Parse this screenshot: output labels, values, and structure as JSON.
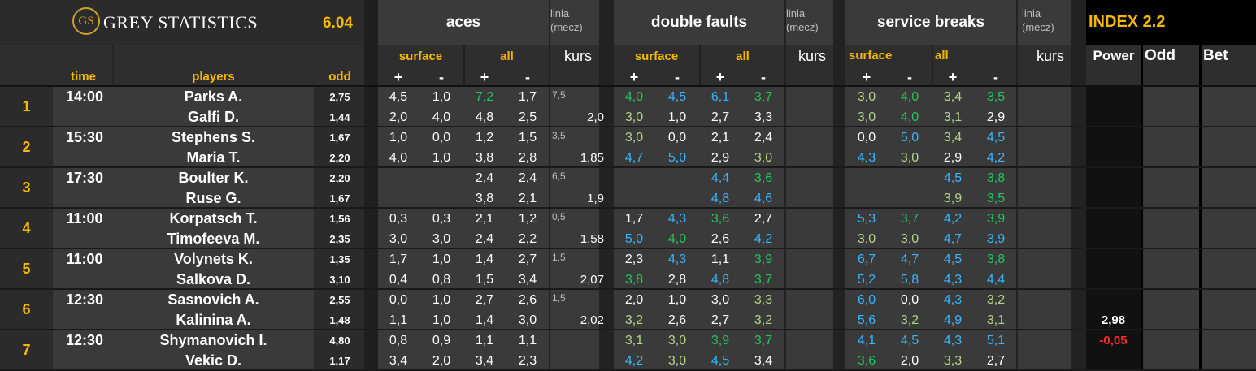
{
  "colors": {
    "white": "#ffffff",
    "green": "#22c55e",
    "blue": "#38b6ff",
    "lime": "#b5d48a",
    "gray": "#bdbdbd",
    "gold": "#f5b800",
    "red": "#ff2a2a"
  },
  "header": {
    "brand": "GREY STATISTICS",
    "logo": "GS",
    "version": "6.04",
    "aces": "aces",
    "double_faults": "double faults",
    "service_breaks": "service breaks",
    "linia": "linia",
    "mecz": "(mecz)",
    "index": "INDEX 2.2",
    "surface": "surface",
    "all": "all",
    "kurs": "kurs",
    "power": "Power",
    "odd_col": "Odd",
    "bet": "Bet",
    "time": "time",
    "players": "players",
    "odd": "odd",
    "plus": "+",
    "minus": "-"
  },
  "matches": [
    {
      "no": "1",
      "time": "14:00",
      "players": [
        "Parks A.",
        "Galfi D."
      ],
      "odds": [
        "2,75",
        "1,44"
      ],
      "aces": [
        [
          "4,5",
          "1,0",
          "7,2",
          "1,7"
        ],
        [
          "2,0",
          "4,0",
          "4,8",
          "2,5"
        ]
      ],
      "aces_c": [
        [
          "w",
          "w",
          "g",
          "w"
        ],
        [
          "w",
          "w",
          "w",
          "w"
        ]
      ],
      "ace_line": "7,5",
      "ace_kurs": "2,0",
      "df": [
        [
          "4,0",
          "4,5",
          "6,1",
          "3,7"
        ],
        [
          "3,0",
          "1,0",
          "2,7",
          "3,3"
        ]
      ],
      "df_c": [
        [
          "g",
          "b",
          "b",
          "g"
        ],
        [
          "l",
          "w",
          "w",
          "w"
        ]
      ],
      "sb": [
        [
          "3,0",
          "4,0",
          "3,4",
          "3,5"
        ],
        [
          "3,0",
          "4,0",
          "3,1",
          "2,9"
        ]
      ],
      "sb_c": [
        [
          "l",
          "g",
          "l",
          "g"
        ],
        [
          "l",
          "g",
          "l",
          "w"
        ]
      ],
      "power": [
        "",
        ""
      ]
    },
    {
      "no": "2",
      "time": "15:30",
      "players": [
        "Stephens S.",
        "Maria T."
      ],
      "odds": [
        "1,67",
        "2,20"
      ],
      "aces": [
        [
          "1,0",
          "0,0",
          "1,2",
          "1,5"
        ],
        [
          "4,0",
          "1,0",
          "3,8",
          "2,8"
        ]
      ],
      "aces_c": [
        [
          "w",
          "w",
          "w",
          "w"
        ],
        [
          "w",
          "w",
          "w",
          "w"
        ]
      ],
      "ace_line": "3,5",
      "ace_kurs": "1,85",
      "df": [
        [
          "3,0",
          "0,0",
          "2,1",
          "2,4"
        ],
        [
          "4,7",
          "5,0",
          "2,9",
          "3,0"
        ]
      ],
      "df_c": [
        [
          "l",
          "w",
          "w",
          "w"
        ],
        [
          "b",
          "b",
          "w",
          "l"
        ]
      ],
      "sb": [
        [
          "0,0",
          "5,0",
          "3,4",
          "4,5"
        ],
        [
          "4,3",
          "3,0",
          "2,9",
          "4,2"
        ]
      ],
      "sb_c": [
        [
          "w",
          "b",
          "l",
          "b"
        ],
        [
          "b",
          "l",
          "w",
          "b"
        ]
      ],
      "power": [
        "",
        ""
      ]
    },
    {
      "no": "3",
      "time": "17:30",
      "players": [
        "Boulter K.",
        "Ruse G."
      ],
      "odds": [
        "2,20",
        "1,67"
      ],
      "aces": [
        [
          "",
          "",
          "2,4",
          "2,4"
        ],
        [
          "",
          "",
          "3,8",
          "2,1"
        ]
      ],
      "aces_c": [
        [
          "w",
          "w",
          "w",
          "w"
        ],
        [
          "w",
          "w",
          "w",
          "w"
        ]
      ],
      "ace_line": "6,5",
      "ace_kurs": "1,9",
      "df": [
        [
          "",
          "",
          "4,4",
          "3,6"
        ],
        [
          "",
          "",
          "4,8",
          "4,6"
        ]
      ],
      "df_c": [
        [
          "w",
          "w",
          "b",
          "g"
        ],
        [
          "w",
          "w",
          "b",
          "b"
        ]
      ],
      "sb": [
        [
          "",
          "",
          "4,5",
          "3,8"
        ],
        [
          "",
          "",
          "3,9",
          "3,5"
        ]
      ],
      "sb_c": [
        [
          "w",
          "w",
          "b",
          "g"
        ],
        [
          "w",
          "w",
          "l",
          "g"
        ]
      ],
      "power": [
        "",
        ""
      ]
    },
    {
      "no": "4",
      "time": "11:00",
      "players": [
        "Korpatsch T.",
        "Timofeeva M."
      ],
      "odds": [
        "1,56",
        "2,35"
      ],
      "aces": [
        [
          "0,3",
          "0,3",
          "2,1",
          "1,2"
        ],
        [
          "3,0",
          "3,0",
          "2,4",
          "2,2"
        ]
      ],
      "aces_c": [
        [
          "w",
          "w",
          "w",
          "w"
        ],
        [
          "w",
          "w",
          "w",
          "w"
        ]
      ],
      "ace_line": "0,5",
      "ace_kurs": "1,58",
      "df": [
        [
          "1,7",
          "4,3",
          "3,6",
          "2,7"
        ],
        [
          "5,0",
          "4,0",
          "2,6",
          "4,2"
        ]
      ],
      "df_c": [
        [
          "w",
          "b",
          "g",
          "w"
        ],
        [
          "b",
          "g",
          "w",
          "b"
        ]
      ],
      "sb": [
        [
          "5,3",
          "3,7",
          "4,2",
          "3,9"
        ],
        [
          "3,0",
          "3,0",
          "4,7",
          "3,9"
        ]
      ],
      "sb_c": [
        [
          "b",
          "g",
          "b",
          "g"
        ],
        [
          "l",
          "l",
          "b",
          "b"
        ]
      ],
      "power": [
        "",
        ""
      ]
    },
    {
      "no": "5",
      "time": "11:00",
      "players": [
        "Volynets K.",
        "Salkova D."
      ],
      "odds": [
        "1,35",
        "3,10"
      ],
      "aces": [
        [
          "1,7",
          "1,0",
          "1,4",
          "2,7"
        ],
        [
          "0,4",
          "0,8",
          "1,5",
          "3,4"
        ]
      ],
      "aces_c": [
        [
          "w",
          "w",
          "w",
          "w"
        ],
        [
          "w",
          "w",
          "w",
          "w"
        ]
      ],
      "ace_line": "1,5",
      "ace_kurs": "2,07",
      "df": [
        [
          "2,3",
          "4,3",
          "1,1",
          "3,9"
        ],
        [
          "3,8",
          "2,8",
          "4,8",
          "3,7"
        ]
      ],
      "df_c": [
        [
          "w",
          "b",
          "w",
          "g"
        ],
        [
          "g",
          "w",
          "b",
          "g"
        ]
      ],
      "sb": [
        [
          "6,7",
          "4,7",
          "4,5",
          "3,8"
        ],
        [
          "5,2",
          "5,8",
          "4,3",
          "4,4"
        ]
      ],
      "sb_c": [
        [
          "b",
          "b",
          "b",
          "g"
        ],
        [
          "b",
          "b",
          "b",
          "b"
        ]
      ],
      "power": [
        "",
        ""
      ]
    },
    {
      "no": "6",
      "time": "12:30",
      "players": [
        "Sasnovich A.",
        "Kalinina A."
      ],
      "odds": [
        "2,55",
        "1,48"
      ],
      "aces": [
        [
          "0,0",
          "1,0",
          "2,7",
          "2,6"
        ],
        [
          "1,1",
          "1,0",
          "1,4",
          "3,0"
        ]
      ],
      "aces_c": [
        [
          "w",
          "w",
          "w",
          "w"
        ],
        [
          "w",
          "w",
          "w",
          "w"
        ]
      ],
      "ace_line": "1,5",
      "ace_kurs": "2,02",
      "df": [
        [
          "2,0",
          "1,0",
          "3,0",
          "3,3"
        ],
        [
          "3,2",
          "2,6",
          "2,7",
          "3,2"
        ]
      ],
      "df_c": [
        [
          "w",
          "w",
          "w",
          "l"
        ],
        [
          "l",
          "w",
          "w",
          "l"
        ]
      ],
      "sb": [
        [
          "6,0",
          "0,0",
          "4,3",
          "3,2"
        ],
        [
          "5,6",
          "3,2",
          "4,9",
          "3,1"
        ]
      ],
      "sb_c": [
        [
          "b",
          "w",
          "b",
          "l"
        ],
        [
          "b",
          "l",
          "b",
          "l"
        ]
      ],
      "power": [
        "",
        "2,98"
      ]
    },
    {
      "no": "7",
      "time": "12:30",
      "players": [
        "Shymanovich I.",
        "Vekic D."
      ],
      "odds": [
        "4,80",
        "1,17"
      ],
      "aces": [
        [
          "0,8",
          "0,9",
          "1,1",
          "1,1"
        ],
        [
          "3,4",
          "2,0",
          "3,4",
          "2,3"
        ]
      ],
      "aces_c": [
        [
          "w",
          "w",
          "w",
          "w"
        ],
        [
          "w",
          "w",
          "w",
          "w"
        ]
      ],
      "ace_line": "",
      "ace_kurs": "",
      "df": [
        [
          "3,1",
          "3,0",
          "3,9",
          "3,7"
        ],
        [
          "4,2",
          "3,0",
          "4,5",
          "3,4"
        ]
      ],
      "df_c": [
        [
          "l",
          "l",
          "g",
          "g"
        ],
        [
          "b",
          "l",
          "b",
          "w"
        ]
      ],
      "sb": [
        [
          "4,1",
          "4,5",
          "4,3",
          "5,1"
        ],
        [
          "3,6",
          "2,0",
          "3,3",
          "2,7"
        ]
      ],
      "sb_c": [
        [
          "b",
          "b",
          "b",
          "b"
        ],
        [
          "g",
          "w",
          "l",
          "w"
        ]
      ],
      "power": [
        "-0,05",
        ""
      ]
    }
  ]
}
